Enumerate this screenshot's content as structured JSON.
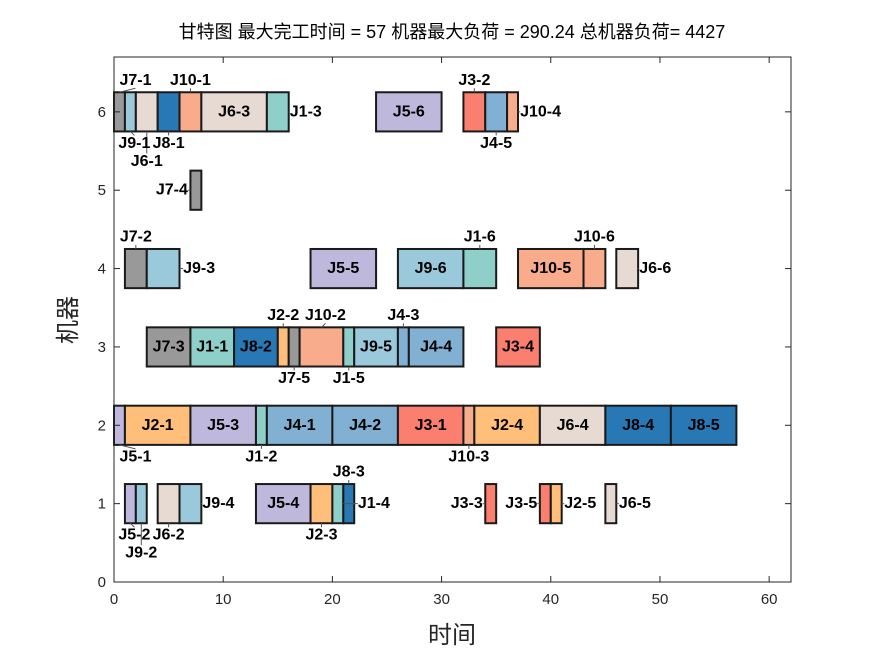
{
  "chart_data": {
    "type": "gantt",
    "title": "甘特图 最大完工时间 = 57 机器最大负荷 = 290.24 总机器负荷= 4427",
    "xlabel": "时间",
    "ylabel": "机器",
    "xlim": [
      0,
      62
    ],
    "ylim": [
      0,
      6.7
    ],
    "xticks": [
      "0",
      "10",
      "20",
      "30",
      "40",
      "50",
      "60"
    ],
    "yticks": [
      "0",
      "1",
      "2",
      "3",
      "4",
      "5",
      "6"
    ],
    "job_colors": {
      "J1": "#8ECFC9",
      "J2": "#FFBE7A",
      "J3": "#FA7F6F",
      "J4": "#82B0D2",
      "J5": "#BEB8DC",
      "J6": "#E7DAD2",
      "J7": "#999999",
      "J8": "#2878B5",
      "J9": "#9AC9DB",
      "J10": "#F8AC8C"
    },
    "tasks": [
      {
        "machine": 6,
        "start": 0,
        "end": 1,
        "job": "J7",
        "label": "J7-1"
      },
      {
        "machine": 6,
        "start": 1,
        "end": 2,
        "job": "J9",
        "label": "J9-1"
      },
      {
        "machine": 6,
        "start": 2,
        "end": 4,
        "job": "J6",
        "label": "J6-1"
      },
      {
        "machine": 6,
        "start": 4,
        "end": 6,
        "job": "J8",
        "label": "J8-1"
      },
      {
        "machine": 6,
        "start": 6,
        "end": 8,
        "job": "J10",
        "label": "J10-1"
      },
      {
        "machine": 6,
        "start": 8,
        "end": 14,
        "job": "J6",
        "label": "J6-3"
      },
      {
        "machine": 6,
        "start": 14,
        "end": 16,
        "job": "J1",
        "label": "J1-3"
      },
      {
        "machine": 6,
        "start": 24,
        "end": 30,
        "job": "J5",
        "label": "J5-6"
      },
      {
        "machine": 6,
        "start": 32,
        "end": 34,
        "job": "J3",
        "label": "J3-2"
      },
      {
        "machine": 6,
        "start": 34,
        "end": 36,
        "job": "J4",
        "label": "J4-5"
      },
      {
        "machine": 6,
        "start": 36,
        "end": 37,
        "job": "J10",
        "label": "J10-4"
      },
      {
        "machine": 5,
        "start": 7,
        "end": 8,
        "job": "J7",
        "label": "J7-4"
      },
      {
        "machine": 4,
        "start": 1,
        "end": 3,
        "job": "J7",
        "label": "J7-2"
      },
      {
        "machine": 4,
        "start": 3,
        "end": 6,
        "job": "J9",
        "label": "J9-3"
      },
      {
        "machine": 4,
        "start": 18,
        "end": 24,
        "job": "J5",
        "label": "J5-5"
      },
      {
        "machine": 4,
        "start": 26,
        "end": 32,
        "job": "J9",
        "label": "J9-6"
      },
      {
        "machine": 4,
        "start": 32,
        "end": 35,
        "job": "J1",
        "label": "J1-6"
      },
      {
        "machine": 4,
        "start": 37,
        "end": 43,
        "job": "J10",
        "label": "J10-5"
      },
      {
        "machine": 4,
        "start": 43,
        "end": 45,
        "job": "J10",
        "label": "J10-6"
      },
      {
        "machine": 4,
        "start": 46,
        "end": 48,
        "job": "J6",
        "label": "J6-6"
      },
      {
        "machine": 3,
        "start": 3,
        "end": 7,
        "job": "J7",
        "label": "J7-3"
      },
      {
        "machine": 3,
        "start": 7,
        "end": 11,
        "job": "J1",
        "label": "J1-1"
      },
      {
        "machine": 3,
        "start": 11,
        "end": 15,
        "job": "J8",
        "label": "J8-2"
      },
      {
        "machine": 3,
        "start": 15,
        "end": 16,
        "job": "J2",
        "label": "J2-2"
      },
      {
        "machine": 3,
        "start": 16,
        "end": 17,
        "job": "J7",
        "label": "J7-5"
      },
      {
        "machine": 3,
        "start": 17,
        "end": 21,
        "job": "J10",
        "label": "J10-2"
      },
      {
        "machine": 3,
        "start": 21,
        "end": 22,
        "job": "J1",
        "label": "J1-5"
      },
      {
        "machine": 3,
        "start": 22,
        "end": 26,
        "job": "J9",
        "label": "J9-5"
      },
      {
        "machine": 3,
        "start": 26,
        "end": 27,
        "job": "J4",
        "label": "J4-3"
      },
      {
        "machine": 3,
        "start": 27,
        "end": 32,
        "job": "J4",
        "label": "J4-4"
      },
      {
        "machine": 3,
        "start": 35,
        "end": 39,
        "job": "J3",
        "label": "J3-4"
      },
      {
        "machine": 2,
        "start": 0,
        "end": 1,
        "job": "J5",
        "label": "J5-1"
      },
      {
        "machine": 2,
        "start": 1,
        "end": 7,
        "job": "J2",
        "label": "J2-1"
      },
      {
        "machine": 2,
        "start": 7,
        "end": 13,
        "job": "J5",
        "label": "J5-3"
      },
      {
        "machine": 2,
        "start": 13,
        "end": 14,
        "job": "J1",
        "label": "J1-2"
      },
      {
        "machine": 2,
        "start": 14,
        "end": 20,
        "job": "J4",
        "label": "J4-1"
      },
      {
        "machine": 2,
        "start": 20,
        "end": 26,
        "job": "J4",
        "label": "J4-2"
      },
      {
        "machine": 2,
        "start": 26,
        "end": 32,
        "job": "J3",
        "label": "J3-1"
      },
      {
        "machine": 2,
        "start": 32,
        "end": 33,
        "job": "J10",
        "label": "J10-3"
      },
      {
        "machine": 2,
        "start": 33,
        "end": 39,
        "job": "J2",
        "label": "J2-4"
      },
      {
        "machine": 2,
        "start": 39,
        "end": 45,
        "job": "J6",
        "label": "J6-4"
      },
      {
        "machine": 2,
        "start": 45,
        "end": 51,
        "job": "J8",
        "label": "J8-4"
      },
      {
        "machine": 2,
        "start": 51,
        "end": 57,
        "job": "J8",
        "label": "J8-5"
      },
      {
        "machine": 1,
        "start": 1,
        "end": 2,
        "job": "J5",
        "label": "J5-2"
      },
      {
        "machine": 1,
        "start": 2,
        "end": 3,
        "job": "J9",
        "label": "J9-2"
      },
      {
        "machine": 1,
        "start": 4,
        "end": 6,
        "job": "J6",
        "label": "J6-2"
      },
      {
        "machine": 1,
        "start": 6,
        "end": 8,
        "job": "J9",
        "label": "J9-4"
      },
      {
        "machine": 1,
        "start": 13,
        "end": 18,
        "job": "J5",
        "label": "J5-4"
      },
      {
        "machine": 1,
        "start": 18,
        "end": 20,
        "job": "J2",
        "label": "J2-3"
      },
      {
        "machine": 1,
        "start": 20,
        "end": 21,
        "job": "J1",
        "label": "J1-4"
      },
      {
        "machine": 1,
        "start": 21,
        "end": 22,
        "job": "J8",
        "label": "J8-3"
      },
      {
        "machine": 1,
        "start": 34,
        "end": 35,
        "job": "J3",
        "label": "J3-3"
      },
      {
        "machine": 1,
        "start": 39,
        "end": 40,
        "job": "J3",
        "label": "J3-5"
      },
      {
        "machine": 1,
        "start": 40,
        "end": 41,
        "job": "J2",
        "label": "J2-5"
      },
      {
        "machine": 1,
        "start": 45,
        "end": 46,
        "job": "J6",
        "label": "J6-5"
      }
    ]
  }
}
